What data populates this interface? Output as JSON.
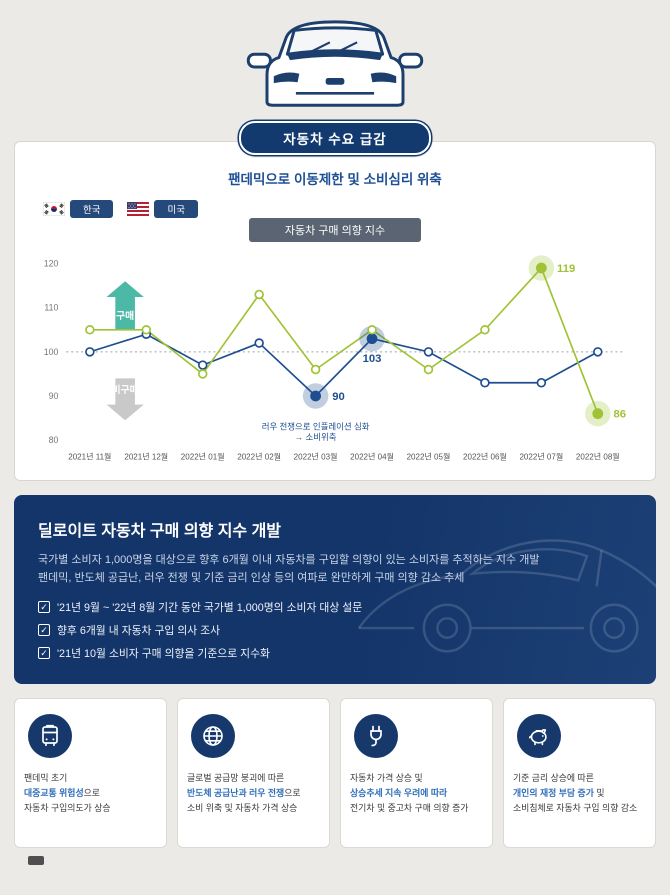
{
  "colors": {
    "navy": "#16386b",
    "korea_line": "#1d4e8f",
    "usa_line": "#9fc335",
    "buy_arrow": "#4cb9a6",
    "nobuy_arrow": "#c9c9c9",
    "blue_em": "#2e6db8"
  },
  "header": {
    "demand_badge": "자동차 수요 급감",
    "subtitle": "팬데믹으로 이동제한 및 소비심리 위축"
  },
  "legend": {
    "korea_label": "한국",
    "usa_label": "미국"
  },
  "chart_badge": "자동차 구매 의향 지수",
  "chart_data": {
    "type": "line",
    "title": "자동차 구매 의향 지수",
    "categories": [
      "2021년 11월",
      "2021년 12월",
      "2022년 01월",
      "2022년 02월",
      "2022년 03월",
      "2022년 04월",
      "2022년 05월",
      "2022년 06월",
      "2022년 07월",
      "2022년 08월"
    ],
    "ylim": [
      80,
      120
    ],
    "yticks": [
      120,
      110,
      100,
      90,
      80
    ],
    "baseline": 100,
    "grid": false,
    "legend_position": "top-left",
    "series": [
      {
        "name": "한국",
        "color": "#1d4e8f",
        "values": [
          100,
          104,
          97,
          102,
          90,
          103,
          100,
          93,
          93,
          100
        ],
        "labels": [
          {
            "i": 4,
            "dx": 17,
            "dy": 4
          },
          {
            "i": 5,
            "dx": 0,
            "dy": 24,
            "anchor": "middle"
          }
        ]
      },
      {
        "name": "미국",
        "color": "#9fc335",
        "values": [
          105,
          105,
          95,
          113,
          96,
          105,
          96,
          105,
          119,
          86
        ],
        "labels": [
          {
            "i": 8,
            "dx": 16,
            "dy": 4
          },
          {
            "i": 9,
            "dx": 16,
            "dy": 4
          }
        ]
      }
    ],
    "annotation": {
      "series": 0,
      "i": 4,
      "dy": 34,
      "lines": [
        "러우 전쟁으로 인플레이션 심화",
        "→ 소비위축"
      ]
    },
    "arrows": {
      "buy": {
        "label": "구매",
        "color": "#4cb9a6",
        "x": 96,
        "from": 105,
        "to": 116,
        "dir": "up"
      },
      "nobuy": {
        "label": "비구매",
        "color": "#c9c9c9",
        "x": 96,
        "from": 94,
        "to": 84.5,
        "dir": "down"
      }
    }
  },
  "info_panel": {
    "title": "딜로이트 자동차 구매 의향 지수 개발",
    "body": [
      "국가별 소비자 1,000명을 대상으로 향후 6개월 이내 자동차를 구입할 의향이 있는 소비자를 추적하는 지수 개발",
      "팬데믹, 반도체 공급난, 러우 전쟁 및 기준 금리 인상 등의 여파로 완만하게 구매 의향 감소 추세"
    ],
    "checklist": [
      "'21년 9월 ~ '22년 8월 기간 동안 국가별 1,000명의 소비자 대상 설문",
      "향후 6개월 내 자동차 구입 의사 조사",
      "'21년 10월 소비자 구매 의향을 기준으로 지수화"
    ]
  },
  "cards": [
    {
      "icon": "bus-icon",
      "lines": [
        [
          {
            "t": "팬데믹 초기"
          }
        ],
        [
          {
            "t": "대중교통 위험성",
            "em": true
          },
          {
            "t": "으로"
          }
        ],
        [
          {
            "t": "자동차 구입의도가 상승"
          }
        ]
      ]
    },
    {
      "icon": "globe-icon",
      "lines": [
        [
          {
            "t": "글로벌 공급망 붕괴에 따른"
          }
        ],
        [
          {
            "t": "반도체 공급난과 러우 전쟁",
            "em": true
          },
          {
            "t": "으로"
          }
        ],
        [
          {
            "t": "소비 위축 및 자동차 가격 상승"
          }
        ]
      ]
    },
    {
      "icon": "plug-icon",
      "lines": [
        [
          {
            "t": "자동차 가격 상승 및"
          }
        ],
        [
          {
            "t": "상승추세 지속 우려에 따라",
            "em": true
          }
        ],
        [
          {
            "t": "전기차 및 중고차 구매 의향 증가"
          }
        ]
      ]
    },
    {
      "icon": "piggy-bank-icon",
      "lines": [
        [
          {
            "t": "기준 금리 상승에 따른"
          }
        ],
        [
          {
            "t": "개인의 재정 부담 증가",
            "em": true
          },
          {
            "t": " 및"
          }
        ],
        [
          {
            "t": "소비침체로 자동차 구입 의향 감소"
          }
        ]
      ]
    }
  ]
}
